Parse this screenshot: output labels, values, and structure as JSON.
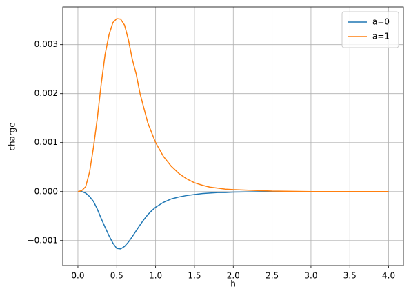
{
  "chart_data": {
    "type": "line",
    "xlabel": "h",
    "ylabel": "charge",
    "x": [
      0,
      0.05,
      0.1,
      0.15,
      0.2,
      0.25,
      0.3,
      0.35,
      0.4,
      0.45,
      0.5,
      0.55,
      0.6,
      0.65,
      0.7,
      0.75,
      0.8,
      0.85,
      0.9,
      0.95,
      1.0,
      1.1,
      1.2,
      1.3,
      1.4,
      1.5,
      1.6,
      1.7,
      1.8,
      1.9,
      2.0,
      2.5,
      3.0,
      3.5,
      4.0
    ],
    "series": [
      {
        "name": "a=0",
        "color": "#1f77b4",
        "values": [
          0,
          0,
          -3e-05,
          -0.0001,
          -0.0002,
          -0.00036,
          -0.00055,
          -0.00073,
          -0.0009,
          -0.00105,
          -0.00116,
          -0.00117,
          -0.00112,
          -0.00103,
          -0.00092,
          -0.0008,
          -0.00068,
          -0.00057,
          -0.00047,
          -0.00039,
          -0.00032,
          -0.00022,
          -0.00015,
          -0.00011,
          -8e-05,
          -6e-05,
          -4e-05,
          -3e-05,
          -2e-05,
          -2e-05,
          -1e-05,
          0,
          0,
          0,
          0
        ]
      },
      {
        "name": "a=1",
        "color": "#ff7f0e",
        "values": [
          0,
          2e-05,
          0.0001,
          0.0004,
          0.0009,
          0.0015,
          0.0022,
          0.0028,
          0.0032,
          0.00345,
          0.00353,
          0.00352,
          0.0034,
          0.0031,
          0.0027,
          0.0024,
          0.002,
          0.0017,
          0.0014,
          0.0012,
          0.001,
          0.00072,
          0.00052,
          0.00037,
          0.00026,
          0.00018,
          0.00013,
          9e-05,
          7e-05,
          5e-05,
          4e-05,
          1e-05,
          0,
          0,
          0
        ]
      }
    ],
    "xlim": [
      -0.195,
      4.19
    ],
    "ylim": [
      -0.00151,
      0.00377
    ],
    "xticks": [
      {
        "value": 0,
        "label": "0.0"
      },
      0.5,
      {
        "value": 1,
        "label": "1.0"
      },
      1.5,
      {
        "value": 2,
        "label": "2.0"
      },
      2.5,
      {
        "value": 3,
        "label": "3.0"
      },
      3.5,
      {
        "value": 4,
        "label": "4.0"
      }
    ],
    "yticks": [
      {
        "value": -0.001,
        "label": "−0.001"
      },
      {
        "value": 0,
        "label": "0.000"
      },
      0.001,
      0.002,
      0.003
    ],
    "grid": true,
    "legend": "upper right"
  }
}
